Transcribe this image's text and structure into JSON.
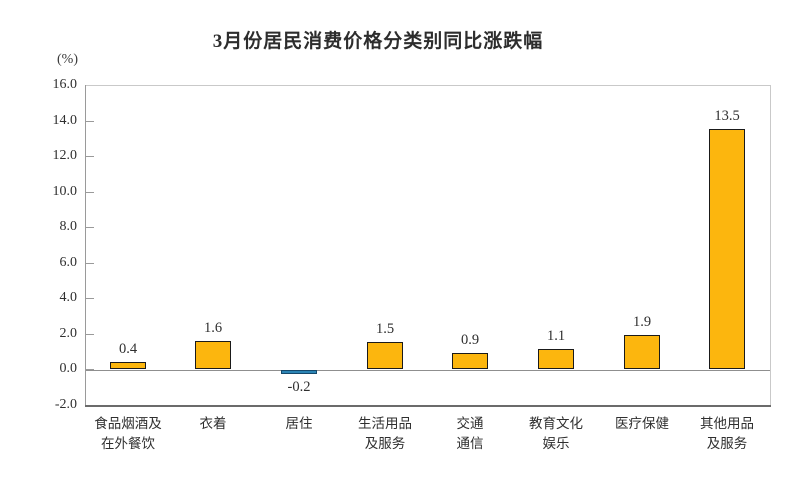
{
  "chart": {
    "title": "3月份居民消费价格分类别同比涨跌幅",
    "unit_label": "(%)"
  },
  "chart_data": {
    "type": "bar",
    "title": "3月份居民消费价格分类别同比涨跌幅",
    "unit": "(%)",
    "categories": [
      "食品烟酒及\n在外餐饮",
      "衣着",
      "居住",
      "生活用品\n及服务",
      "交通\n通信",
      "教育文化\n娱乐",
      "医疗保健",
      "其他用品\n及服务"
    ],
    "values": [
      0.4,
      1.6,
      -0.2,
      1.5,
      0.9,
      1.1,
      1.9,
      13.5
    ],
    "value_labels": [
      "0.4",
      "1.6",
      "-0.2",
      "1.5",
      "0.9",
      "1.1",
      "1.9",
      "13.5"
    ],
    "xlabel": "",
    "ylabel": "(%)",
    "ylim": [
      -2.0,
      16.0
    ],
    "ytick_step": 2.0,
    "ytick_labels": [
      "16.0",
      "14.0",
      "12.0",
      "10.0",
      "8.0",
      "6.0",
      "4.0",
      "2.0",
      "0.0",
      "-2.0"
    ],
    "grid": false,
    "legend": "none"
  },
  "colors": {
    "bar_positive": "#FCB60E",
    "bar_negative": "#2B84B5",
    "bar_border_positive": "#1A1A1A",
    "bar_border_negative": "#14486B",
    "axis_line": "#9A9A9A",
    "box_border": "#C9C9C9",
    "bottom_border": "#6B6B6B",
    "zero_line": "#8F8F8F",
    "text": "#333333"
  }
}
